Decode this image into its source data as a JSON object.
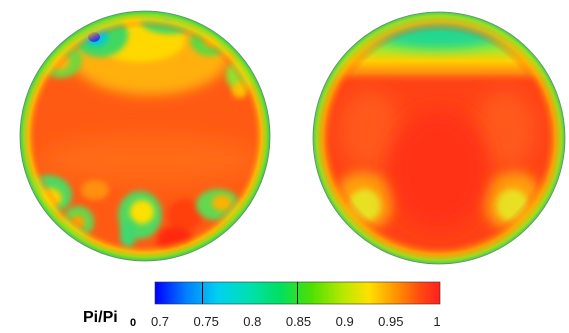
{
  "figure": {
    "panels": [
      {
        "id": "left",
        "description_pattern": "distorted"
      },
      {
        "id": "right",
        "description_pattern": "smooth"
      }
    ],
    "colorbar": {
      "title_main": "Pi/Pi",
      "title_sub": "0",
      "min": 0.7,
      "max": 1.0,
      "ticks": [
        "0.7",
        "0.75",
        "0.8",
        "0.85",
        "0.9",
        "0.95",
        "1"
      ],
      "divider_values": [
        0.75,
        0.85
      ],
      "colors": [
        "#0000ff",
        "#00a0ff",
        "#00e0e0",
        "#00e070",
        "#40e000",
        "#b0e800",
        "#ffe000",
        "#ff9000",
        "#ff4000",
        "#ff2020"
      ]
    }
  }
}
